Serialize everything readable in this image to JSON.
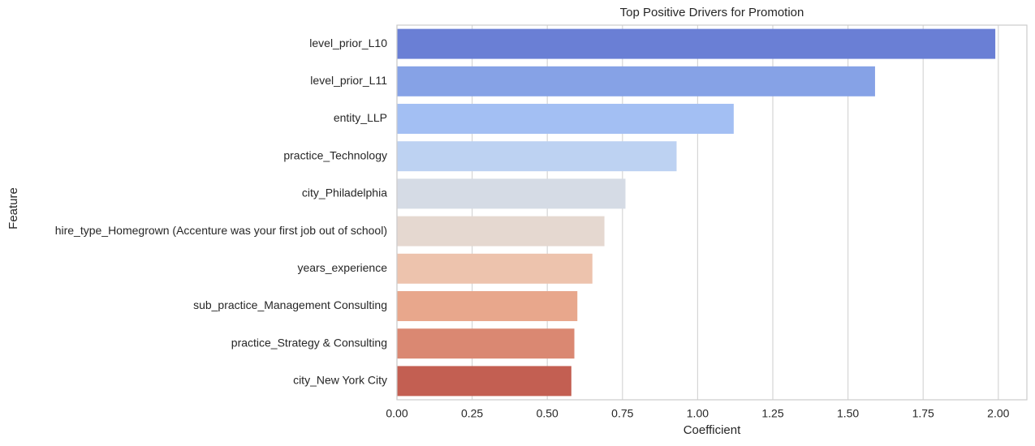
{
  "chart_data": {
    "type": "barh",
    "title": "Top Positive Drivers for Promotion",
    "x_label": "Coefficient",
    "y_label": "Feature",
    "categories": [
      "level_prior_L10",
      "level_prior_L11",
      "entity_LLP",
      "practice_Technology",
      "city_Philadelphia",
      "hire_type_Homegrown (Accenture was your first job out of school)",
      "years_experience",
      "sub_practice_Management Consulting",
      "practice_Strategy & Consulting",
      "city_New York City"
    ],
    "values": [
      1.99,
      1.59,
      1.12,
      0.93,
      0.76,
      0.69,
      0.65,
      0.6,
      0.59,
      0.58
    ],
    "colors": [
      "#6a7fd5",
      "#86a2e6",
      "#a3bff3",
      "#bdd2f2",
      "#d5dbe5",
      "#e5d8d0",
      "#edc3ad",
      "#e8a78c",
      "#da8872",
      "#c35f52"
    ],
    "xlim": [
      0,
      2.095
    ],
    "xticks": [
      {
        "value": 0,
        "label": "0.00"
      },
      0.25,
      {
        "value": 0.5,
        "label": "0.50"
      },
      0.75,
      {
        "value": 1,
        "label": "1.00"
      },
      1.25,
      {
        "value": 1.5,
        "label": "1.50"
      },
      1.75,
      {
        "value": 2,
        "label": "2.00"
      }
    ],
    "grid": true
  }
}
